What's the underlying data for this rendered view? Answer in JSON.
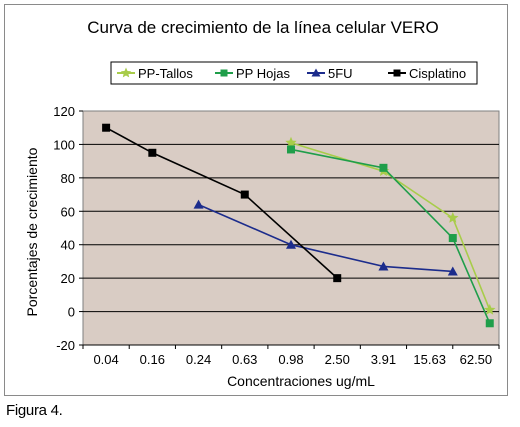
{
  "figure_caption": "Figura 4.",
  "chart_data": {
    "type": "line",
    "title": "Curva de crecimiento de la línea celular VERO",
    "xlabel": "Concentraciones ug/mL",
    "ylabel": "Porcentajes de crecimiento",
    "categories": [
      "0.04",
      "0.16",
      "0.24",
      "0.63",
      "0.98",
      "2.50",
      "3.91",
      "15.63",
      "62.50"
    ],
    "ylim": [
      -20,
      120
    ],
    "yticks": [
      -20,
      0,
      20,
      40,
      60,
      80,
      100,
      120
    ],
    "grid": true,
    "legend_position": "top",
    "plot_background": "#d9ccc4",
    "series": [
      {
        "name": "PP-Tallos",
        "color": "#a8cc4a",
        "marker": "star",
        "x": [
          4.0,
          6.0,
          7.5,
          8.3
        ],
        "y": [
          101,
          84,
          56,
          1
        ]
      },
      {
        "name": "PP Hojas",
        "color": "#1f9e4a",
        "marker": "square",
        "x": [
          4.0,
          6.0,
          7.5,
          8.3
        ],
        "y": [
          97,
          86,
          44,
          -7
        ]
      },
      {
        "name": "5FU",
        "color": "#1c2c8c",
        "marker": "triangle",
        "x": [
          2.0,
          4.0,
          6.0,
          7.5
        ],
        "y": [
          64,
          40,
          27,
          24
        ]
      },
      {
        "name": "Cisplatino",
        "color": "#000000",
        "marker": "square",
        "x": [
          0.0,
          1.0,
          3.0,
          5.0
        ],
        "y": [
          110,
          95,
          70,
          20
        ]
      }
    ]
  }
}
